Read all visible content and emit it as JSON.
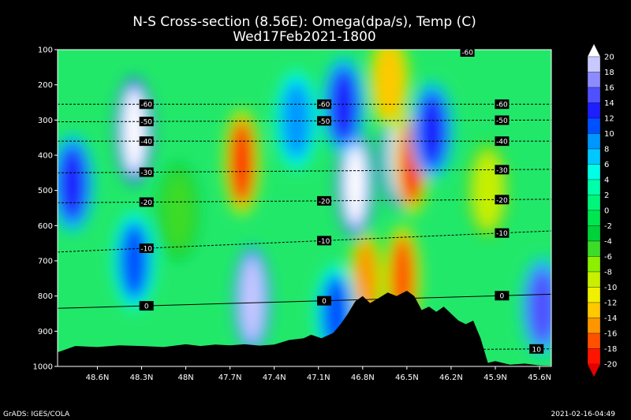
{
  "title": "N-S Cross-section (8.56E): Omega(dpa/s), Temp (C)",
  "subtitle": "Wed17Feb2021-1800",
  "footer_left": "GrADS: IGES/COLA",
  "footer_right": "2021-02-16-04:49",
  "chart_data": {
    "type": "heatmap",
    "xlabel": "",
    "ylabel": "",
    "x_ticks": [
      "48.6N",
      "48.3N",
      "48N",
      "47.7N",
      "47.4N",
      "47.1N",
      "46.8N",
      "46.5N",
      "46.2N",
      "45.9N",
      "45.6N"
    ],
    "y_ticks": [
      100,
      200,
      300,
      400,
      500,
      600,
      700,
      800,
      900,
      1000
    ],
    "ylim": [
      1000,
      100
    ],
    "colorbar": {
      "levels": [
        20,
        18,
        16,
        14,
        12,
        10,
        8,
        6,
        4,
        2,
        0,
        -2,
        -4,
        -6,
        -8,
        -10,
        -12,
        -14,
        -16,
        -18,
        -20
      ],
      "colors": [
        "#ffffff",
        "#c8c8ff",
        "#8c8cff",
        "#5050ff",
        "#1e1eff",
        "#0050ff",
        "#0096ff",
        "#00c8ff",
        "#00ffe6",
        "#00ffaa",
        "#00f57a",
        "#00e650",
        "#00d23c",
        "#3cdc28",
        "#8cf000",
        "#c8f000",
        "#f0f000",
        "#ffc800",
        "#ff9600",
        "#ff5000",
        "#ff1400",
        "#e60000"
      ]
    },
    "blobs": [
      {
        "x": 48.77,
        "p": 480,
        "value": 12
      },
      {
        "x": 48.35,
        "p": 330,
        "value": 20
      },
      {
        "x": 48.35,
        "p": 700,
        "value": 10
      },
      {
        "x": 47.62,
        "p": 420,
        "value": -20
      },
      {
        "x": 47.55,
        "p": 810,
        "value": 18
      },
      {
        "x": 47.25,
        "p": 300,
        "value": 8
      },
      {
        "x": 46.85,
        "p": 480,
        "value": 20
      },
      {
        "x": 46.93,
        "p": 260,
        "value": 12
      },
      {
        "x": 46.55,
        "p": 400,
        "value": 20
      },
      {
        "x": 46.47,
        "p": 420,
        "value": -20
      },
      {
        "x": 46.53,
        "p": 750,
        "value": -18
      },
      {
        "x": 46.62,
        "p": 190,
        "value": -14
      },
      {
        "x": 46.78,
        "p": 760,
        "value": -16
      },
      {
        "x": 46.33,
        "p": 330,
        "value": 12
      },
      {
        "x": 45.95,
        "p": 500,
        "value": -10
      },
      {
        "x": 45.58,
        "p": 830,
        "value": 14
      },
      {
        "x": 46.98,
        "p": 850,
        "value": 10
      },
      {
        "x": 48.05,
        "p": 560,
        "value": -6
      }
    ],
    "temperature_lines": [
      {
        "value": -60,
        "p_north": 255,
        "p_south": 255,
        "labels": [
          "-60",
          "-60",
          "-60"
        ]
      },
      {
        "value": -50,
        "p_north": 305,
        "p_south": 300,
        "labels": [
          "-50",
          "-50",
          "-50"
        ]
      },
      {
        "value": -40,
        "p_north": 360,
        "p_south": 360,
        "labels": [
          "-40",
          "-40"
        ]
      },
      {
        "value": -30,
        "p_north": 450,
        "p_south": 440,
        "labels": [
          "-30",
          "-30"
        ]
      },
      {
        "value": -20,
        "p_north": 535,
        "p_south": 525,
        "labels": [
          "-20",
          "-20",
          "-20"
        ]
      },
      {
        "value": -10,
        "p_north": 675,
        "p_south": 615,
        "labels": [
          "-10",
          "-10",
          "-10"
        ]
      },
      {
        "value": 0,
        "p_north": 835,
        "p_south": 795,
        "labels": [
          "0",
          "0",
          "0"
        ]
      },
      {
        "value": 10,
        "p_north": 960,
        "p_south": 950,
        "labels": [
          "10"
        ]
      }
    ],
    "top_label": "-60",
    "terrain_pressure": [
      [
        48.87,
        960
      ],
      [
        48.75,
        942
      ],
      [
        48.6,
        945
      ],
      [
        48.45,
        940
      ],
      [
        48.3,
        942
      ],
      [
        48.15,
        945
      ],
      [
        48.0,
        937
      ],
      [
        47.9,
        942
      ],
      [
        47.8,
        938
      ],
      [
        47.7,
        940
      ],
      [
        47.6,
        937
      ],
      [
        47.5,
        941
      ],
      [
        47.4,
        938
      ],
      [
        47.3,
        925
      ],
      [
        47.2,
        920
      ],
      [
        47.15,
        910
      ],
      [
        47.08,
        920
      ],
      [
        47.0,
        905
      ],
      [
        46.95,
        880
      ],
      [
        46.9,
        850
      ],
      [
        46.85,
        815
      ],
      [
        46.8,
        800
      ],
      [
        46.75,
        820
      ],
      [
        46.7,
        808
      ],
      [
        46.63,
        790
      ],
      [
        46.57,
        800
      ],
      [
        46.5,
        785
      ],
      [
        46.45,
        800
      ],
      [
        46.4,
        840
      ],
      [
        46.35,
        830
      ],
      [
        46.3,
        845
      ],
      [
        46.25,
        830
      ],
      [
        46.2,
        850
      ],
      [
        46.15,
        870
      ],
      [
        46.1,
        880
      ],
      [
        46.05,
        870
      ],
      [
        46.0,
        920
      ],
      [
        45.95,
        990
      ],
      [
        45.9,
        985
      ],
      [
        45.8,
        995
      ],
      [
        45.7,
        992
      ],
      [
        45.6,
        997
      ],
      [
        45.52,
        998
      ]
    ]
  }
}
